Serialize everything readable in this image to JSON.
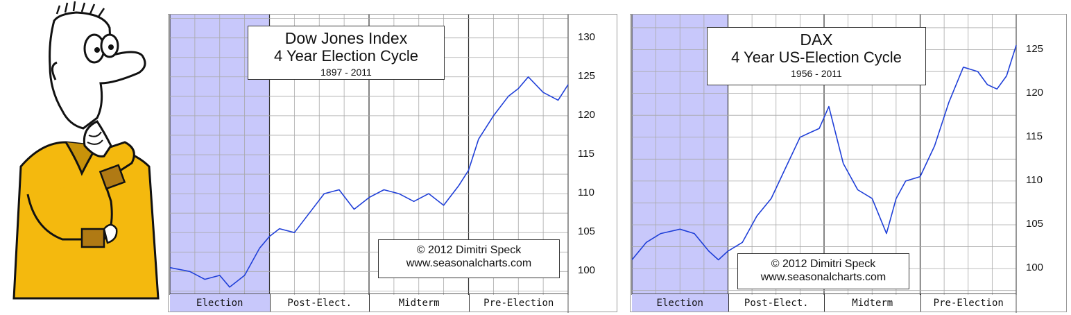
{
  "colors": {
    "line": "#1f3fd8",
    "highlight": "#c8c8fb",
    "grid": "#a8a8a8",
    "phase_divider": "#333333"
  },
  "cartoon": {
    "name": "thinking-man-illustration"
  },
  "chart_data": [
    {
      "type": "line",
      "title": "Dow Jones Index",
      "subtitle": "4 Year Election Cycle",
      "years": "1897 - 2011",
      "credit_line1": "© 2012  Dimitri Speck",
      "credit_line2": "www.seasonalcharts.com",
      "phases": [
        "Election",
        "Post-Elect.",
        "Midterm",
        "Pre-Election"
      ],
      "highlighted_phase": "Election",
      "yticks": [
        100,
        105,
        110,
        115,
        120,
        125,
        130
      ],
      "ylim": [
        97,
        133
      ],
      "x": [
        0,
        0.2,
        0.35,
        0.5,
        0.6,
        0.75,
        0.9,
        1.0,
        1.1,
        1.25,
        1.4,
        1.55,
        1.7,
        1.85,
        2.0,
        2.15,
        2.3,
        2.45,
        2.6,
        2.75,
        2.9,
        3.0,
        3.1,
        3.25,
        3.4,
        3.5,
        3.6,
        3.75,
        3.9,
        4.0
      ],
      "values": [
        100.5,
        100,
        99,
        99.5,
        98,
        99.5,
        103,
        104.5,
        105.5,
        105,
        107.5,
        110,
        110.5,
        108,
        109.5,
        110.5,
        110,
        109,
        110,
        108.5,
        111,
        113,
        117,
        120,
        122.5,
        123.5,
        125,
        123,
        122,
        124
      ]
    },
    {
      "type": "line",
      "title": "DAX",
      "subtitle": "4 Year US-Election Cycle",
      "years": "1956 - 2011",
      "credit_line1": "© 2012  Dimitri Speck",
      "credit_line2": "www.seasonalcharts.com",
      "phases": [
        "Election",
        "Post-Elect.",
        "Midterm",
        "Pre-Election"
      ],
      "highlighted_phase": "Election",
      "yticks": [
        100,
        105,
        110,
        115,
        120,
        125
      ],
      "ylim": [
        97,
        129
      ],
      "x": [
        0,
        0.15,
        0.3,
        0.5,
        0.65,
        0.8,
        0.9,
        1.0,
        1.15,
        1.3,
        1.45,
        1.6,
        1.75,
        1.85,
        1.95,
        2.05,
        2.2,
        2.35,
        2.5,
        2.65,
        2.75,
        2.85,
        3.0,
        3.15,
        3.3,
        3.45,
        3.6,
        3.7,
        3.8,
        3.9,
        4.0
      ],
      "values": [
        101,
        103,
        104,
        104.5,
        104,
        102,
        101,
        102,
        103,
        106,
        108,
        111.5,
        115,
        115.5,
        116,
        118.5,
        112,
        109,
        108,
        104,
        108,
        110,
        110.5,
        114,
        119,
        123,
        122.5,
        121,
        120.5,
        122,
        125.5
      ]
    }
  ]
}
